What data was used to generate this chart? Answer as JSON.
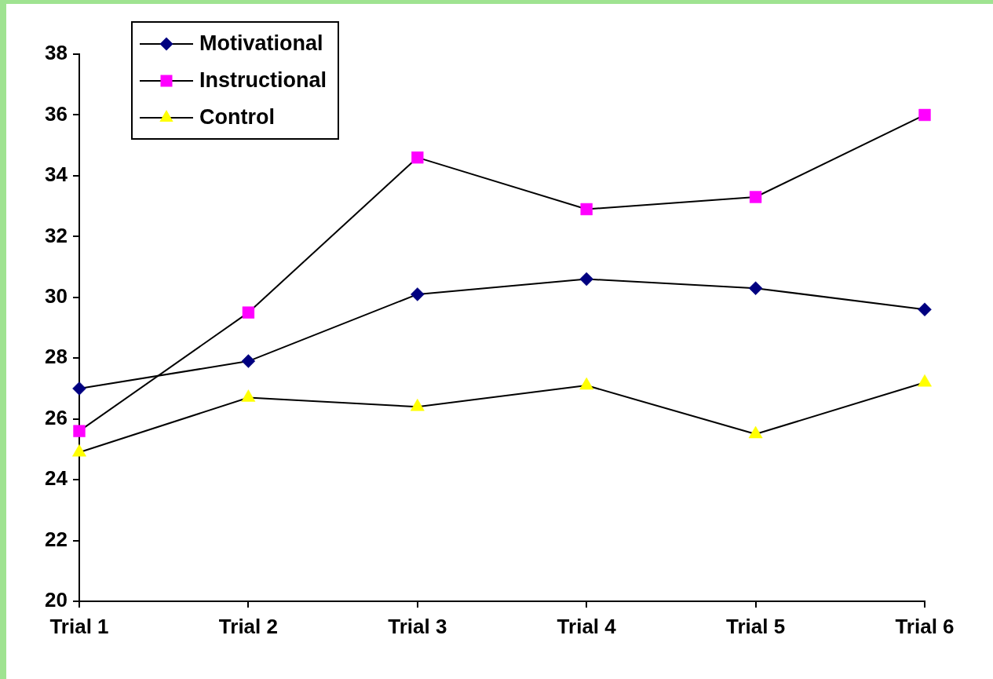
{
  "chart_data": {
    "type": "line",
    "categories": [
      "Trial 1",
      "Trial 2",
      "Trial 3",
      "Trial 4",
      "Trial 5",
      "Trial 6"
    ],
    "series": [
      {
        "name": "Motivational",
        "color": "#000080",
        "marker": "diamond",
        "values": [
          27.0,
          27.9,
          30.1,
          30.6,
          30.3,
          29.6
        ]
      },
      {
        "name": "Instructional",
        "color": "#ff00ff",
        "marker": "square",
        "values": [
          25.6,
          29.5,
          34.6,
          32.9,
          33.3,
          36.0
        ]
      },
      {
        "name": "Control",
        "color": "#ffff00",
        "marker": "triangle",
        "values": [
          24.9,
          26.7,
          26.4,
          27.1,
          25.5,
          27.2
        ]
      }
    ],
    "ylim": [
      20,
      38
    ],
    "yticks": [
      20,
      22,
      24,
      26,
      28,
      30,
      32,
      34,
      36,
      38
    ],
    "grid": false,
    "legend": "top left",
    "line_style": "solid"
  }
}
